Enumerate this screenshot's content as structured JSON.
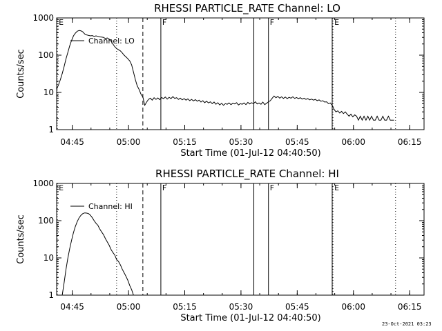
{
  "footer": {
    "timestamp": "23-Oct-2021 03:23"
  },
  "chart_data": [
    {
      "type": "line",
      "title": "RHESSI PARTICLE_RATE Channel: LO",
      "xlabel": "Start Time (01-Jul-12 04:40:50)",
      "ylabel": "Counts/sec",
      "ylog": true,
      "ylim": [
        1,
        1000
      ],
      "xlim_minutes": [
        0,
        98
      ],
      "ytick_labels": [
        "1",
        "10",
        "100",
        "1000"
      ],
      "xtick_labels": [
        "04:45",
        "05:00",
        "05:15",
        "05:30",
        "05:45",
        "06:00",
        "06:15"
      ],
      "legend": {
        "label": "Channel: LO",
        "position": "top-left"
      },
      "markers": [
        {
          "t": 0.2,
          "style": "dotted",
          "label": "E"
        },
        {
          "t": 16.0,
          "style": "dotted",
          "label": ""
        },
        {
          "t": 23.0,
          "style": "dashed",
          "label": ""
        },
        {
          "t": 27.8,
          "style": "solid",
          "label": "F"
        },
        {
          "t": 52.6,
          "style": "solid",
          "label": ""
        },
        {
          "t": 56.5,
          "style": "solid",
          "label": "F"
        },
        {
          "t": 73.5,
          "style": "solid",
          "label": ""
        },
        {
          "t": 73.7,
          "style": "dotted",
          "label": "E"
        },
        {
          "t": 90.4,
          "style": "dotted",
          "label": ""
        }
      ],
      "series": [
        {
          "name": "Channel: LO",
          "points": [
            [
              0,
              12
            ],
            [
              0.5,
              16
            ],
            [
              1,
              22
            ],
            [
              1.5,
              32
            ],
            [
              2,
              50
            ],
            [
              2.5,
              80
            ],
            [
              3,
              120
            ],
            [
              3.5,
              180
            ],
            [
              4,
              250
            ],
            [
              4.5,
              330
            ],
            [
              5,
              390
            ],
            [
              5.5,
              440
            ],
            [
              6,
              460
            ],
            [
              6.5,
              450
            ],
            [
              7,
              420
            ],
            [
              7.5,
              370
            ],
            [
              8,
              350
            ],
            [
              8.5,
              340
            ],
            [
              9,
              330
            ],
            [
              9.5,
              335
            ],
            [
              10,
              320
            ],
            [
              10.5,
              330
            ],
            [
              11,
              320
            ],
            [
              11.5,
              310
            ],
            [
              12,
              305
            ],
            [
              12.5,
              300
            ],
            [
              13,
              280
            ],
            [
              13.5,
              290
            ],
            [
              14,
              270
            ],
            [
              14.5,
              240
            ],
            [
              15,
              200
            ],
            [
              15.5,
              170
            ],
            [
              16,
              150
            ],
            [
              16.5,
              140
            ],
            [
              17,
              130
            ],
            [
              17.5,
              115
            ],
            [
              18,
              100
            ],
            [
              18.5,
              90
            ],
            [
              19,
              80
            ],
            [
              19.5,
              70
            ],
            [
              20,
              55
            ],
            [
              20.5,
              35
            ],
            [
              21,
              22
            ],
            [
              21.5,
              15
            ],
            [
              22,
              12
            ],
            [
              22.5,
              9
            ],
            [
              23,
              7.5
            ],
            [
              23.5,
              4.5
            ],
            [
              24,
              5.5
            ],
            [
              24.5,
              6.5
            ],
            [
              25,
              7
            ],
            [
              25.5,
              6.2
            ],
            [
              26,
              7.2
            ],
            [
              26.5,
              6.5
            ],
            [
              27,
              7.1
            ],
            [
              27.5,
              6.4
            ],
            [
              28,
              7.3
            ],
            [
              28.5,
              6.8
            ],
            [
              29,
              7.5
            ],
            [
              29.5,
              6.6
            ],
            [
              30,
              7.4
            ],
            [
              30.5,
              6.8
            ],
            [
              31,
              7.7
            ],
            [
              31.5,
              6.9
            ],
            [
              32,
              7.2
            ],
            [
              32.5,
              6.5
            ],
            [
              33,
              7.0
            ],
            [
              33.5,
              6.3
            ],
            [
              34,
              6.8
            ],
            [
              34.5,
              6.2
            ],
            [
              35,
              6.7
            ],
            [
              35.5,
              6.0
            ],
            [
              36,
              6.5
            ],
            [
              36.5,
              5.9
            ],
            [
              37,
              6.4
            ],
            [
              37.5,
              5.8
            ],
            [
              38,
              6.2
            ],
            [
              38.5,
              5.5
            ],
            [
              39,
              6.0
            ],
            [
              39.5,
              5.3
            ],
            [
              40,
              5.8
            ],
            [
              40.5,
              5.2
            ],
            [
              41,
              5.6
            ],
            [
              41.5,
              5.0
            ],
            [
              42,
              5.5
            ],
            [
              42.5,
              4.8
            ],
            [
              43,
              5.3
            ],
            [
              43.5,
              4.6
            ],
            [
              44,
              5.1
            ],
            [
              44.5,
              4.5
            ],
            [
              45,
              5.0
            ],
            [
              45.5,
              4.8
            ],
            [
              46,
              5.2
            ],
            [
              46.5,
              4.7
            ],
            [
              47,
              5.1
            ],
            [
              47.5,
              4.9
            ],
            [
              48,
              5.3
            ],
            [
              48.5,
              4.6
            ],
            [
              49,
              5.0
            ],
            [
              49.5,
              4.8
            ],
            [
              50,
              5.2
            ],
            [
              50.5,
              4.7
            ],
            [
              51,
              5.4
            ],
            [
              51.5,
              4.9
            ],
            [
              52,
              5.3
            ],
            [
              52.5,
              5.0
            ],
            [
              53,
              5.6
            ],
            [
              53.5,
              4.9
            ],
            [
              54,
              5.2
            ],
            [
              54.5,
              4.8
            ],
            [
              55,
              5.5
            ],
            [
              55.5,
              4.7
            ],
            [
              56,
              5.1
            ],
            [
              56.5,
              5.6
            ],
            [
              57,
              6.0
            ],
            [
              57.5,
              7.0
            ],
            [
              58,
              8.0
            ],
            [
              58.5,
              7.2
            ],
            [
              59,
              7.8
            ],
            [
              59.5,
              7.0
            ],
            [
              60,
              7.6
            ],
            [
              60.5,
              6.9
            ],
            [
              61,
              7.5
            ],
            [
              61.5,
              6.8
            ],
            [
              62,
              7.4
            ],
            [
              62.5,
              7.0
            ],
            [
              63,
              7.6
            ],
            [
              63.5,
              6.9
            ],
            [
              64,
              7.3
            ],
            [
              64.5,
              6.8
            ],
            [
              65,
              7.2
            ],
            [
              65.5,
              6.6
            ],
            [
              66,
              7.0
            ],
            [
              66.5,
              6.5
            ],
            [
              67,
              6.8
            ],
            [
              67.5,
              6.3
            ],
            [
              68,
              6.6
            ],
            [
              68.5,
              6.2
            ],
            [
              69,
              6.5
            ],
            [
              69.5,
              6.0
            ],
            [
              70,
              6.3
            ],
            [
              70.5,
              5.8
            ],
            [
              71,
              6.0
            ],
            [
              71.5,
              5.5
            ],
            [
              72,
              5.6
            ],
            [
              72.5,
              5.0
            ],
            [
              73,
              5.2
            ],
            [
              73.5,
              4.5
            ],
            [
              74,
              3.5
            ],
            [
              74.5,
              3.0
            ],
            [
              75,
              3.2
            ],
            [
              75.5,
              2.8
            ],
            [
              76,
              3.1
            ],
            [
              76.5,
              2.7
            ],
            [
              77,
              3.0
            ],
            [
              77.5,
              2.6
            ],
            [
              78,
              2.3
            ],
            [
              78.5,
              2.6
            ],
            [
              79,
              2.2
            ],
            [
              79.5,
              2.5
            ],
            [
              80,
              2.3
            ],
            [
              80.5,
              1.8
            ],
            [
              81,
              2.3
            ],
            [
              81.5,
              1.8
            ],
            [
              82,
              2.3
            ],
            [
              82.5,
              1.8
            ],
            [
              83,
              2.3
            ],
            [
              83.5,
              1.8
            ],
            [
              84,
              2.3
            ],
            [
              84.5,
              1.8
            ],
            [
              85,
              1.8
            ],
            [
              85.5,
              2.3
            ],
            [
              86,
              1.8
            ],
            [
              86.5,
              1.8
            ],
            [
              87,
              2.3
            ],
            [
              87.5,
              1.8
            ],
            [
              88,
              1.8
            ],
            [
              88.5,
              2.3
            ],
            [
              89,
              1.8
            ],
            [
              89.5,
              1.8
            ],
            [
              90,
              1.8
            ]
          ]
        }
      ]
    },
    {
      "type": "line",
      "title": "RHESSI PARTICLE_RATE Channel: HI",
      "xlabel": "Start Time (01-Jul-12 04:40:50)",
      "ylabel": "Counts/sec",
      "ylog": true,
      "ylim": [
        1,
        1000
      ],
      "xlim_minutes": [
        0,
        98
      ],
      "ytick_labels": [
        "1",
        "10",
        "100",
        "1000"
      ],
      "xtick_labels": [
        "04:45",
        "05:00",
        "05:15",
        "05:30",
        "05:45",
        "06:00",
        "06:15"
      ],
      "legend": {
        "label": "Channel: HI",
        "position": "top-left"
      },
      "markers": [
        {
          "t": 0.2,
          "style": "dotted",
          "label": "E"
        },
        {
          "t": 16.0,
          "style": "dotted",
          "label": ""
        },
        {
          "t": 23.0,
          "style": "dashed",
          "label": ""
        },
        {
          "t": 27.8,
          "style": "solid",
          "label": "F"
        },
        {
          "t": 52.6,
          "style": "solid",
          "label": ""
        },
        {
          "t": 56.5,
          "style": "solid",
          "label": "F"
        },
        {
          "t": 73.5,
          "style": "solid",
          "label": ""
        },
        {
          "t": 73.7,
          "style": "dotted",
          "label": "E"
        },
        {
          "t": 90.4,
          "style": "dotted",
          "label": ""
        }
      ],
      "series": [
        {
          "name": "Channel: HI",
          "points": [
            [
              1.5,
              1.0
            ],
            [
              2,
              2.2
            ],
            [
              2.5,
              5
            ],
            [
              3,
              10
            ],
            [
              3.5,
              18
            ],
            [
              4,
              30
            ],
            [
              4.5,
              48
            ],
            [
              5,
              70
            ],
            [
              5.5,
              95
            ],
            [
              6,
              120
            ],
            [
              6.5,
              140
            ],
            [
              7,
              155
            ],
            [
              7.5,
              162
            ],
            [
              8,
              160
            ],
            [
              8.5,
              155
            ],
            [
              9,
              140
            ],
            [
              9.5,
              120
            ],
            [
              10,
              100
            ],
            [
              10.5,
              85
            ],
            [
              11,
              75
            ],
            [
              11.5,
              60
            ],
            [
              12,
              50
            ],
            [
              12.5,
              42
            ],
            [
              13,
              33
            ],
            [
              13.5,
              27
            ],
            [
              14,
              22
            ],
            [
              14.5,
              17
            ],
            [
              15,
              14
            ],
            [
              15.5,
              12
            ],
            [
              16,
              9
            ],
            [
              16.5,
              8
            ],
            [
              17,
              6.5
            ],
            [
              17.5,
              5
            ],
            [
              18,
              4
            ],
            [
              18.5,
              3.2
            ],
            [
              19,
              2.5
            ],
            [
              19.5,
              1.8
            ],
            [
              20,
              1.4
            ],
            [
              20.5,
              1.0
            ]
          ]
        }
      ]
    }
  ]
}
